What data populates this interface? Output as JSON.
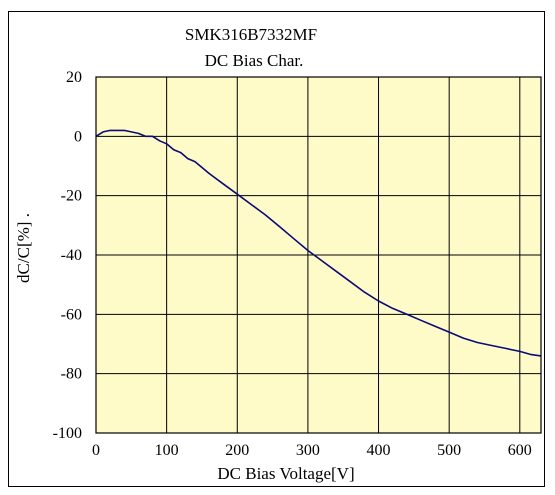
{
  "chart_data": {
    "type": "line",
    "title": "SMK316B7332MF",
    "subtitle": "DC Bias Char.",
    "xlabel": "DC Bias Voltage[V]",
    "ylabel": "dC/C[%] .",
    "xlim": [
      0,
      630
    ],
    "ylim": [
      -100,
      20
    ],
    "x_ticks": [
      0,
      100,
      200,
      300,
      400,
      500,
      600
    ],
    "y_ticks": [
      20,
      0,
      -20,
      -40,
      -60,
      -80,
      -100
    ],
    "x_tick_labels": [
      "0",
      "100",
      "200",
      "300",
      "400",
      "500",
      "600"
    ],
    "y_tick_labels": [
      "20",
      "0",
      "-20",
      "-40",
      "-60",
      "-80",
      "-100"
    ],
    "grid": true,
    "legend": "none",
    "colors": {
      "plot_background": "#FFFBC9",
      "line": "#0A0A78",
      "grid": "#000000"
    },
    "series": [
      {
        "x": [
          0,
          10,
          20,
          30,
          40,
          50,
          60,
          70,
          80,
          90,
          100,
          110,
          120,
          130,
          140,
          150,
          160,
          180,
          200,
          220,
          240,
          260,
          280,
          300,
          320,
          340,
          360,
          380,
          400,
          420,
          440,
          460,
          480,
          500,
          520,
          540,
          560,
          580,
          600,
          615,
          630
        ],
        "y": [
          0,
          1.5,
          2,
          2,
          2,
          1.5,
          1,
          0,
          0,
          -1.5,
          -2.5,
          -4.5,
          -5.5,
          -7.5,
          -8.5,
          -10.5,
          -12.5,
          -16,
          -19.5,
          -23,
          -26.5,
          -30.5,
          -34.5,
          -38.5,
          -42,
          -45.5,
          -49,
          -52.5,
          -55.5,
          -58,
          -60,
          -62,
          -64,
          -66,
          -68,
          -69.5,
          -70.5,
          -71.5,
          -72.5,
          -73.5,
          -74
        ]
      }
    ]
  }
}
